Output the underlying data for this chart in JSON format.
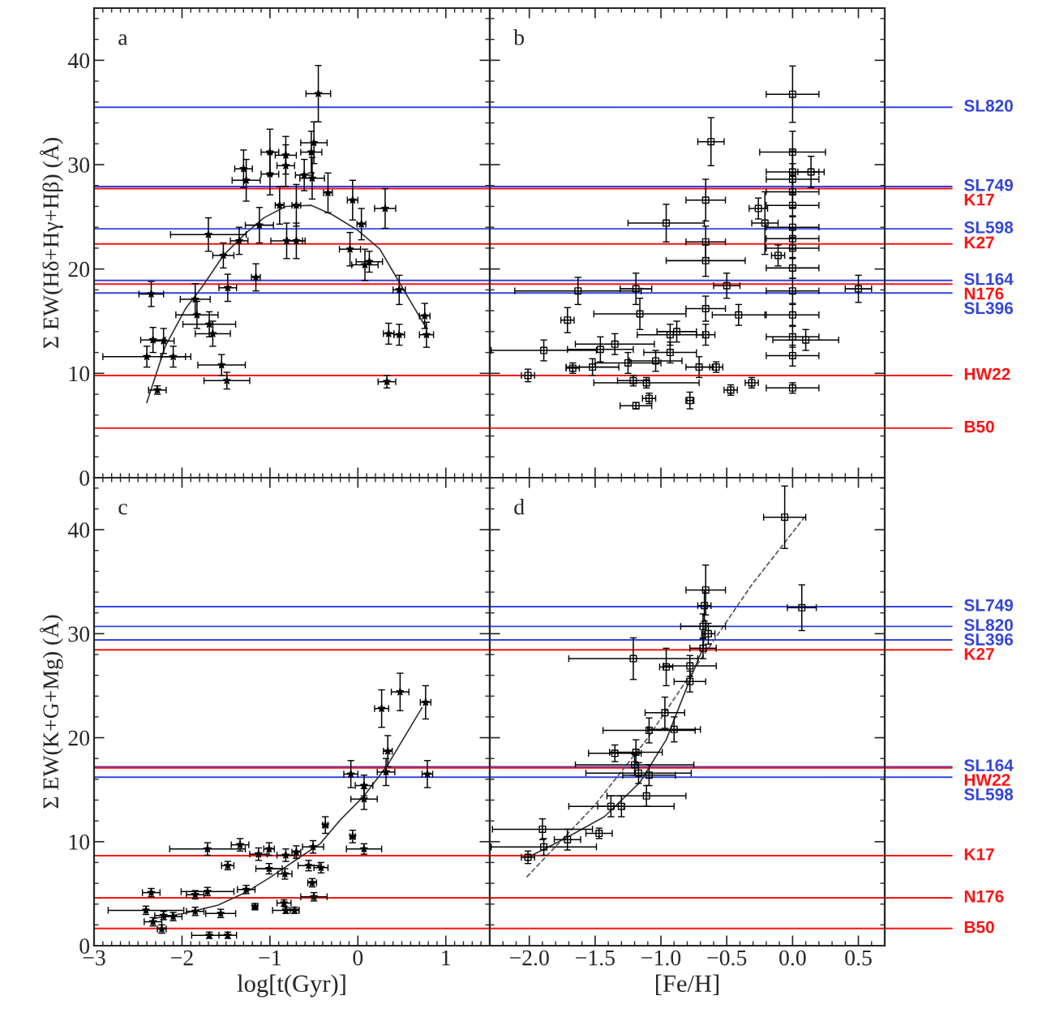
{
  "chart_data": [
    {
      "type": "scatter",
      "ylabel": "Σ EW(Hδ+Hγ+Hβ) (Å)",
      "annotations": [
        "a"
      ],
      "xlim": [
        -3,
        1.5
      ],
      "ylim": [
        0,
        45
      ],
      "xticks": [
        {
          "value": -3,
          "label": null
        },
        {
          "value": -2,
          "label": null
        },
        {
          "value": -1,
          "label": null
        },
        {
          "value": 0,
          "label": null
        },
        {
          "value": 1,
          "label": null
        }
      ],
      "yticks": [
        0,
        10,
        20,
        30,
        40
      ],
      "tick_labels": "y",
      "series": [
        {
          "color": "#000000",
          "marker": "star",
          "x": [
            -0.45,
            -0.5,
            -0.53,
            -1.0,
            -0.82,
            -0.82,
            -1.3,
            -1.27,
            -1.0,
            -0.61,
            -0.52,
            -0.34,
            -0.06,
            0.31,
            0.04,
            -0.7,
            -0.89,
            -1.12,
            -1.35,
            -1.7,
            -1.53,
            -0.81,
            -0.7,
            -1.16,
            -1.48,
            -2.35,
            -1.85,
            -1.83,
            -1.69,
            -1.65,
            -2.33,
            -2.21,
            -2.4,
            -2.1,
            -1.55,
            -1.49,
            -2.28,
            -0.09,
            0.08,
            0.13,
            0.47,
            0.76,
            0.78,
            0.35,
            0.47,
            0.33
          ],
          "values": [
            36.8,
            32.1,
            31.2,
            31.2,
            30.9,
            29.9,
            29.6,
            28.5,
            29.1,
            29.0,
            28.7,
            27.3,
            26.6,
            25.8,
            24.3,
            26.1,
            26.1,
            24.2,
            22.7,
            23.3,
            21.3,
            22.7,
            22.7,
            19.2,
            18.2,
            17.6,
            17.1,
            15.6,
            14.7,
            13.8,
            13.2,
            13.1,
            11.6,
            11.6,
            10.8,
            9.3,
            8.4,
            21.9,
            20.4,
            20.7,
            18.0,
            15.5,
            13.7,
            13.8,
            13.7,
            9.2
          ],
          "errors": [
            2.7,
            2.0,
            2.0,
            2.2,
            1.8,
            2.0,
            1.8,
            2.0,
            2.0,
            1.5,
            2.0,
            1.9,
            1.9,
            1.9,
            1.5,
            2.0,
            1.8,
            1.7,
            1.3,
            1.6,
            1.2,
            1.7,
            1.7,
            1.3,
            1.3,
            1.2,
            1.5,
            1.3,
            1.2,
            1.2,
            1.2,
            1.2,
            1.0,
            1.0,
            1.0,
            0.8,
            0.4,
            1.6,
            1.5,
            1.0,
            1.4,
            1.2,
            1.2,
            1.0,
            1.0,
            0.6
          ],
          "xerrors": [
            0.14,
            0.15,
            0.12,
            0.1,
            0.12,
            0.1,
            0.1,
            0.16,
            0.1,
            0.1,
            0.14,
            0.05,
            0.06,
            0.12,
            0.05,
            0.05,
            0.05,
            0.16,
            0.1,
            0.43,
            0.12,
            0.18,
            0.1,
            0.05,
            0.1,
            0.14,
            0.17,
            0.24,
            0.3,
            0.2,
            0.14,
            0.12,
            0.5,
            0.14,
            0.27,
            0.26,
            0.1,
            0.12,
            0.15,
            0.15,
            0.07,
            0.06,
            0.08,
            0.06,
            0.06,
            0.1
          ]
        },
        {
          "type": "line",
          "color": "#333333",
          "line_style": "solid",
          "marker": "none",
          "x": [
            -2.4,
            -2.19,
            -1.96,
            -1.77,
            -1.53,
            -1.28,
            -1.07,
            -0.82,
            -0.53,
            -0.29,
            0.0,
            0.25,
            0.5,
            0.78
          ],
          "values": [
            7.2,
            12.6,
            16.2,
            18.3,
            21.3,
            23.4,
            24.9,
            26.0,
            26.1,
            25.2,
            23.7,
            21.9,
            18.3,
            14.3
          ]
        }
      ],
      "ref_lines": [
        {
          "axis": "y",
          "value": 35.5,
          "color": "#3344dd"
        },
        {
          "axis": "y",
          "value": 27.9,
          "color": "#3344dd"
        },
        {
          "axis": "y",
          "value": 27.7,
          "color": "#ff1111"
        },
        {
          "axis": "y",
          "value": 23.85,
          "color": "#3344dd"
        },
        {
          "axis": "y",
          "value": 22.4,
          "color": "#ff1111"
        },
        {
          "axis": "y",
          "value": 18.9,
          "color": "#3344dd"
        },
        {
          "axis": "y",
          "value": 18.55,
          "color": "#ff1111"
        },
        {
          "axis": "y",
          "value": 17.7,
          "color": "#3344dd"
        },
        {
          "axis": "y",
          "value": 9.8,
          "color": "#ff1111"
        },
        {
          "axis": "y",
          "value": 4.75,
          "color": "#ff1111"
        }
      ]
    },
    {
      "type": "scatter",
      "annotations": [
        "b"
      ],
      "xlim": [
        -2.3,
        0.7
      ],
      "ylim": [
        0,
        45
      ],
      "xticks": [
        {
          "value": -2,
          "label": null
        },
        {
          "value": -1.5,
          "label": null
        },
        {
          "value": -1,
          "label": null
        },
        {
          "value": -0.5,
          "label": null
        },
        {
          "value": 0,
          "label": null
        },
        {
          "value": 0.5,
          "label": null
        }
      ],
      "yticks": [
        0,
        10,
        20,
        30,
        40
      ],
      "tick_labels": false,
      "series": [
        {
          "color": "#000000",
          "marker": "square",
          "x": [
            0.0,
            -0.62,
            0.0,
            0.0,
            0.0,
            0.0,
            0.14,
            -0.66,
            -0.96,
            -0.26,
            0.0,
            -0.21,
            0.0,
            0.0,
            0.0,
            -0.66,
            -0.66,
            -0.11,
            0.0,
            -0.5,
            0.5,
            0.0,
            -1.63,
            -1.19,
            -1.71,
            -1.16,
            -0.66,
            -0.41,
            0.0,
            0.0,
            0.0,
            0.1,
            -1.89,
            -2.01,
            -1.46,
            -1.35,
            -0.93,
            -0.88,
            -0.66,
            -0.93,
            -1.25,
            -1.04,
            -0.71,
            -0.58,
            -1.67,
            -1.52,
            -1.21,
            -1.11,
            -1.09,
            -1.19,
            -0.78,
            -0.47,
            -0.31,
            0.0
          ],
          "values": [
            36.75,
            32.2,
            31.2,
            29.3,
            28.6,
            27.4,
            29.3,
            26.6,
            24.4,
            25.8,
            26.1,
            24.4,
            24.0,
            22.9,
            22.0,
            22.6,
            20.8,
            21.3,
            20.1,
            18.4,
            18.1,
            17.9,
            17.9,
            18.1,
            15.1,
            15.7,
            16.2,
            15.6,
            15.6,
            13.5,
            11.7,
            13.2,
            12.2,
            9.8,
            12.3,
            12.8,
            13.7,
            14.0,
            13.7,
            12.0,
            11.0,
            11.2,
            10.6,
            10.6,
            10.5,
            10.6,
            9.3,
            9.1,
            7.6,
            6.9,
            7.4,
            8.4,
            9.1,
            8.6
          ],
          "errors": [
            2.7,
            2.3,
            2.0,
            2.0,
            1.5,
            1.5,
            1.5,
            2.0,
            1.8,
            1.0,
            1.0,
            3.0,
            1.0,
            1.0,
            1.0,
            1.5,
            1.5,
            1.0,
            1.0,
            1.2,
            1.3,
            1.2,
            1.3,
            1.5,
            1.2,
            1.5,
            1.2,
            1.0,
            1.0,
            1.0,
            1.0,
            1.0,
            1.0,
            0.6,
            1.2,
            1.0,
            1.0,
            1.0,
            1.0,
            1.0,
            1.0,
            1.0,
            1.0,
            0.5,
            0.5,
            0.8,
            0.5,
            0.5,
            0.5,
            0.3,
            0.8,
            0.5,
            0.5,
            0.5
          ],
          "xerrors": [
            0.2,
            0.1,
            0.25,
            0.2,
            0.2,
            0.2,
            0.1,
            0.15,
            0.29,
            0.07,
            0.2,
            0.1,
            0.2,
            0.2,
            0.2,
            0.15,
            0.3,
            0.05,
            0.2,
            0.1,
            0.1,
            0.2,
            0.48,
            0.12,
            0.05,
            0.35,
            0.15,
            0.2,
            0.2,
            0.2,
            0.2,
            0.25,
            0.4,
            0.05,
            0.25,
            0.3,
            0.25,
            0.15,
            0.07,
            0.2,
            0.25,
            0.2,
            0.1,
            0.05,
            0.05,
            0.2,
            0.12,
            0.4,
            0.05,
            0.12,
            0.03,
            0.05,
            0.05,
            0.2
          ]
        }
      ],
      "ref_lines": [
        {
          "axis": "y",
          "value": 35.5,
          "color": "#3344dd",
          "label": "SL820"
        },
        {
          "axis": "y",
          "value": 27.9,
          "color": "#3344dd",
          "label": "SL749"
        },
        {
          "axis": "y",
          "value": 27.7,
          "color": "#ff1111",
          "label": "K17"
        },
        {
          "axis": "y",
          "value": 23.85,
          "color": "#3344dd",
          "label": "SL598"
        },
        {
          "axis": "y",
          "value": 22.4,
          "color": "#ff1111",
          "label": "K27"
        },
        {
          "axis": "y",
          "value": 18.9,
          "color": "#3344dd",
          "label": "SL164"
        },
        {
          "axis": "y",
          "value": 18.55,
          "color": "#ff1111",
          "label": "N176"
        },
        {
          "axis": "y",
          "value": 17.7,
          "color": "#3344dd",
          "label": "SL396"
        },
        {
          "axis": "y",
          "value": 9.8,
          "color": "#ff1111",
          "label": "HW22"
        },
        {
          "axis": "y",
          "value": 4.75,
          "color": "#ff1111",
          "label": "B50"
        }
      ]
    },
    {
      "type": "scatter",
      "xlabel": "log[t(Gyr)]",
      "ylabel": "Σ EW(K+G+Mg) (Å)",
      "annotations": [
        "c"
      ],
      "xlim": [
        -3,
        1.5
      ],
      "ylim": [
        0,
        45
      ],
      "xticks": [
        {
          "value": -3,
          "label": "−3"
        },
        {
          "value": -2,
          "label": "−2"
        },
        {
          "value": -1,
          "label": "−1"
        },
        {
          "value": 0,
          "label": "0"
        },
        {
          "value": 1,
          "label": "1"
        }
      ],
      "yticks": [
        0,
        10,
        20,
        30,
        40
      ],
      "series": [
        {
          "color": "#000000",
          "marker": "star",
          "x": [
            0.48,
            0.27,
            0.77,
            0.34,
            0.32,
            0.79,
            -0.08,
            0.07,
            0.07,
            -0.37,
            -0.06,
            0.07,
            -0.51,
            -1.71,
            -1.34,
            -1.01,
            -1.13,
            -0.82,
            -0.7,
            -1.48,
            -1.01,
            -0.83,
            -0.56,
            -0.42,
            -0.52,
            -0.5,
            -2.35,
            -1.85,
            -1.71,
            -1.27,
            -1.17,
            -0.84,
            -0.82,
            -0.72,
            -2.41,
            -2.21,
            -2.1,
            -1.85,
            -1.56,
            -2.33,
            -2.23,
            -1.69,
            -1.48
          ],
          "values": [
            24.4,
            22.8,
            23.4,
            18.7,
            16.7,
            16.5,
            16.5,
            15.4,
            14.1,
            11.6,
            10.5,
            9.3,
            9.5,
            9.3,
            9.7,
            9.3,
            8.8,
            8.7,
            9.0,
            7.7,
            7.4,
            6.9,
            7.7,
            7.5,
            6.05,
            4.7,
            5.1,
            4.9,
            5.2,
            5.4,
            3.75,
            4.1,
            3.4,
            3.4,
            3.4,
            2.9,
            2.8,
            3.3,
            3.1,
            2.3,
            1.6,
            1.0,
            1.0
          ],
          "errors": [
            1.8,
            1.8,
            1.6,
            1.5,
            1.3,
            1.3,
            1.3,
            1.0,
            1.0,
            0.8,
            0.6,
            0.5,
            0.6,
            0.6,
            0.6,
            0.6,
            0.6,
            0.6,
            0.6,
            0.4,
            0.5,
            0.5,
            0.5,
            0.5,
            0.4,
            0.4,
            0.4,
            0.4,
            0.4,
            0.4,
            0.3,
            0.3,
            0.3,
            0.3,
            0.4,
            0.4,
            0.4,
            0.4,
            0.4,
            0.4,
            0.4,
            0.3,
            0.3
          ],
          "xerrors": [
            0.1,
            0.08,
            0.06,
            0.05,
            0.1,
            0.06,
            0.08,
            0.1,
            0.15,
            0.03,
            0.03,
            0.2,
            0.12,
            0.43,
            0.1,
            0.06,
            0.1,
            0.1,
            0.05,
            0.07,
            0.15,
            0.08,
            0.12,
            0.08,
            0.05,
            0.15,
            0.1,
            0.1,
            0.3,
            0.1,
            0.03,
            0.08,
            0.15,
            0.05,
            0.43,
            0.1,
            0.1,
            0.1,
            0.17,
            0.1,
            0.05,
            0.2,
            0.1
          ]
        },
        {
          "type": "line",
          "color": "#333333",
          "line_style": "solid",
          "marker": "none",
          "x": [
            -2.33,
            -1.98,
            -1.59,
            -1.28,
            -1.01,
            -0.66,
            -0.43,
            -0.2,
            0.07,
            0.34,
            0.73
          ],
          "values": [
            2.6,
            3.1,
            3.9,
            5.1,
            6.5,
            8.5,
            9.8,
            12.1,
            14.4,
            17.4,
            22.9
          ]
        }
      ],
      "ref_lines": [
        {
          "axis": "y",
          "value": 32.6,
          "color": "#3344dd"
        },
        {
          "axis": "y",
          "value": 30.7,
          "color": "#3344dd"
        },
        {
          "axis": "y",
          "value": 29.4,
          "color": "#3344dd"
        },
        {
          "axis": "y",
          "value": 28.45,
          "color": "#ff1111"
        },
        {
          "axis": "y",
          "value": 17.2,
          "color": "#3344dd"
        },
        {
          "axis": "y",
          "value": 17.1,
          "color": "#ff1111"
        },
        {
          "axis": "y",
          "value": 16.2,
          "color": "#3344dd"
        },
        {
          "axis": "y",
          "value": 8.65,
          "color": "#ff1111"
        },
        {
          "axis": "y",
          "value": 4.6,
          "color": "#ff1111"
        },
        {
          "axis": "y",
          "value": 1.65,
          "color": "#ff1111"
        }
      ]
    },
    {
      "type": "scatter",
      "xlabel": "[Fe/H]",
      "annotations": [
        "d"
      ],
      "xlim": [
        -2.3,
        0.7
      ],
      "ylim": [
        0,
        45
      ],
      "xticks": [
        {
          "value": -2,
          "label": "−2.0"
        },
        {
          "value": -1.5,
          "label": "−1.5"
        },
        {
          "value": -1,
          "label": "−1.0"
        },
        {
          "value": -0.5,
          "label": "−0.5"
        },
        {
          "value": 0,
          "label": "0.0"
        },
        {
          "value": 0.5,
          "label": "0.5"
        }
      ],
      "yticks": [
        0,
        10,
        20,
        30,
        40
      ],
      "tick_labels": "x",
      "series": [
        {
          "color": "#000000",
          "marker": "square",
          "x": [
            -0.06,
            -0.66,
            0.07,
            -0.67,
            -0.68,
            -0.64,
            -0.68,
            -1.21,
            -0.96,
            -0.78,
            -0.78,
            -0.97,
            -0.9,
            -1.09,
            -1.19,
            -1.35,
            -1.2,
            -1.09,
            -1.17,
            -1.11,
            -1.38,
            -1.3,
            -1.47,
            -1.71,
            -1.9,
            -1.89,
            -2.01
          ],
          "values": [
            41.2,
            34.2,
            32.5,
            32.7,
            30.7,
            30.0,
            28.6,
            27.6,
            26.8,
            25.4,
            26.9,
            22.4,
            20.8,
            20.7,
            18.6,
            18.5,
            17.4,
            16.4,
            16.6,
            14.4,
            13.4,
            13.4,
            10.8,
            10.2,
            11.2,
            9.5,
            8.5
          ],
          "errors": [
            3.0,
            2.4,
            2.2,
            1.5,
            1.2,
            1.0,
            1.0,
            2.0,
            1.8,
            1.0,
            1.0,
            1.5,
            1.2,
            1.2,
            1.2,
            0.8,
            1.0,
            1.0,
            1.0,
            1.0,
            1.0,
            1.0,
            0.5,
            1.0,
            1.0,
            0.8,
            0.6
          ],
          "xerrors": [
            0.16,
            0.15,
            0.11,
            0.05,
            0.17,
            0.05,
            0.1,
            0.49,
            0.05,
            0.12,
            0.2,
            0.15,
            0.2,
            0.35,
            0.2,
            0.2,
            0.45,
            0.2,
            0.4,
            0.3,
            0.1,
            0.4,
            0.1,
            0.1,
            0.38,
            0.4,
            0.05
          ]
        },
        {
          "type": "line",
          "color": "#333333",
          "line_style": "solid",
          "marker": "none",
          "x": [
            -2.01,
            -1.73,
            -1.43,
            -1.16,
            -0.96,
            -0.77,
            -0.68,
            -0.66
          ],
          "values": [
            8.5,
            10.3,
            12.4,
            15.7,
            19.8,
            25.9,
            28.6,
            31.3
          ]
        },
        {
          "type": "line",
          "color": "#555555",
          "line_style": "dashed",
          "marker": "none",
          "x": [
            -2.02,
            -1.51,
            -1.11,
            -0.71,
            -0.31,
            0.09
          ],
          "values": [
            6.6,
            13.4,
            19.8,
            27.3,
            34.7,
            41.2
          ]
        }
      ],
      "ref_lines": [
        {
          "axis": "y",
          "value": 32.6,
          "color": "#3344dd",
          "label": "SL749"
        },
        {
          "axis": "y",
          "value": 30.7,
          "color": "#3344dd",
          "label": "SL820"
        },
        {
          "axis": "y",
          "value": 29.4,
          "color": "#3344dd",
          "label": "SL396"
        },
        {
          "axis": "y",
          "value": 28.45,
          "color": "#ff1111",
          "label": "K27"
        },
        {
          "axis": "y",
          "value": 17.2,
          "color": "#3344dd",
          "label": "SL164"
        },
        {
          "axis": "y",
          "value": 17.1,
          "color": "#ff1111",
          "label": "HW22"
        },
        {
          "axis": "y",
          "value": 16.2,
          "color": "#3344dd",
          "label": "SL598"
        },
        {
          "axis": "y",
          "value": 8.65,
          "color": "#ff1111",
          "label": "K17"
        },
        {
          "axis": "y",
          "value": 4.6,
          "color": "#ff1111",
          "label": "N176"
        },
        {
          "axis": "y",
          "value": 1.65,
          "color": "#ff1111",
          "label": "B50"
        }
      ]
    }
  ]
}
